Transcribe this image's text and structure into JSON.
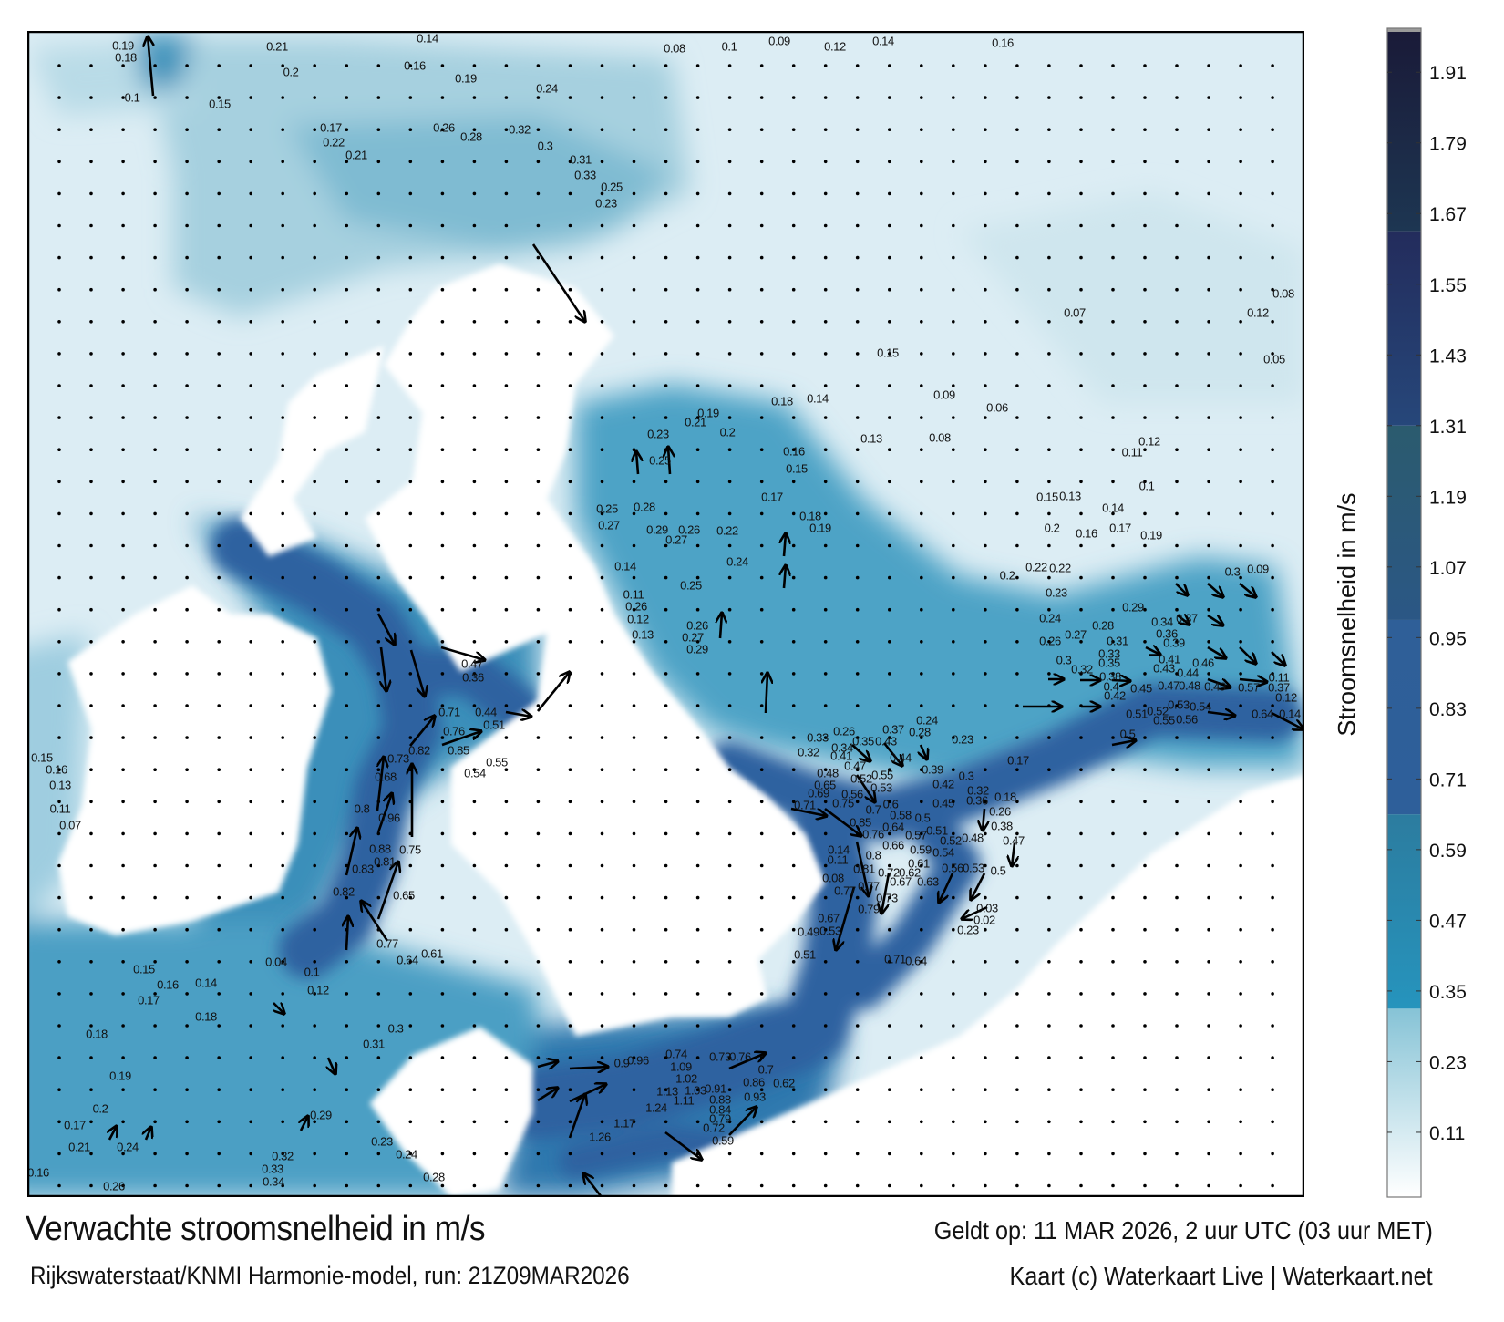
{
  "title": "Verwachte stroomsnelheid in m/s",
  "subtitle": "Rijkswaterstaat/KNMI Harmonie-model, run: 21Z09MAR2026",
  "valid_time": "Geldt op: 11 MAR 2026, 2 uur UTC (03 uur MET)",
  "credit": "Kaart (c) Waterkaart Live | Waterkaart.net",
  "colorbar": {
    "label": "Stroomsnelheid in m/s",
    "range": [
      0,
      1.98
    ],
    "ticks": [
      "1.91",
      "1.79",
      "1.67",
      "1.55",
      "1.43",
      "1.31",
      "1.19",
      "1.07",
      "0.95",
      "0.83",
      "0.71",
      "0.59",
      "0.47",
      "0.35",
      "0.23",
      "0.11"
    ],
    "colors": {
      "low": "#ffffff",
      "light": "#8cc6d8",
      "teal": "#2a8fb7",
      "blue": "#2d5f9a",
      "slate": "#2a5a74",
      "navy": "#24386a",
      "dark": "#1a1c38",
      "land": "#ffffff"
    }
  },
  "map": {
    "labels": [
      "0.19",
      "0.18",
      "0.1",
      "0.21",
      "0.2",
      "0.14",
      "0.16",
      "0.19",
      "0.24",
      "0.15",
      "0.17",
      "0.22",
      "0.21",
      "0.26",
      "0.28",
      "0.32",
      "0.3",
      "0.31",
      "0.33",
      "0.25",
      "0.23",
      "0.08",
      "0.1",
      "0.09",
      "0.12",
      "0.14",
      "0.16",
      "0.15",
      "0.18",
      "0.14",
      "0.21",
      "0.19",
      "0.2",
      "0.23",
      "0.25",
      "0.16",
      "0.15",
      "0.17",
      "0.18",
      "0.19",
      "0.22",
      "0.24",
      "0.28",
      "0.29",
      "0.26",
      "0.27",
      "0.25",
      "0.27",
      "0.14",
      "0.11",
      "0.26",
      "0.12",
      "0.13",
      "0.25",
      "0.26",
      "0.27",
      "0.29",
      "0.13",
      "0.08",
      "0.09",
      "0.06",
      "0.12",
      "0.11",
      "0.08",
      "0.12",
      "0.07",
      "0.05",
      "0.15",
      "0.13",
      "0.14",
      "0.16",
      "0.17",
      "0.19",
      "0.2",
      "0.1",
      "0.2",
      "0.22",
      "0.22",
      "0.23",
      "0.24",
      "0.26",
      "0.27",
      "0.3",
      "0.32",
      "0.28",
      "0.29",
      "0.31",
      "0.33",
      "0.35",
      "0.38",
      "0.4",
      "0.42",
      "0.45",
      "0.34",
      "0.37",
      "0.36",
      "0.39",
      "0.41",
      "0.43",
      "0.44",
      "0.46",
      "0.47",
      "0.48",
      "0.49",
      "0.57",
      "0.51",
      "0.52",
      "0.53",
      "0.54",
      "0.55",
      "0.56",
      "0.5",
      "0.3",
      "0.09",
      "0.11",
      "0.37",
      "0.12",
      "0.64",
      "0.14",
      "0.76",
      "0.85",
      "0.8",
      "0.81",
      "0.77",
      "0.79",
      "0.73",
      "0.72",
      "0.67",
      "0.63",
      "0.62",
      "0.61",
      "0.59",
      "0.57",
      "0.58",
      "0.64",
      "0.66",
      "0.5",
      "0.51",
      "0.52",
      "0.54",
      "0.56",
      "0.53",
      "0.48",
      "0.5",
      "0.47",
      "0.38",
      "0.26",
      "0.36",
      "0.32",
      "0.18",
      "0.3",
      "0.42",
      "0.45",
      "0.39",
      "0.44",
      "0.43",
      "0.37",
      "0.28",
      "0.24",
      "0.35",
      "0.26",
      "0.33",
      "0.32",
      "0.41",
      "0.34",
      "0.47",
      "0.48",
      "0.65",
      "0.69",
      "0.71",
      "0.75",
      "0.56",
      "0.52",
      "0.55",
      "0.53",
      "0.7",
      "0.6",
      "0.23",
      "0.17",
      "0.23",
      "0.03",
      "0.02",
      "0.14",
      "0.11",
      "0.08",
      "0.77",
      "0.67",
      "0.53",
      "0.49",
      "0.51",
      "0.71",
      "0.64",
      "0.71",
      "0.82",
      "0.76",
      "0.51",
      "0.44",
      "0.73",
      "0.68",
      "0.8",
      "0.96",
      "0.88",
      "0.75",
      "0.81",
      "0.83",
      "0.82",
      "0.65",
      "0.77",
      "0.61",
      "0.64",
      "0.47",
      "0.36",
      "0.85",
      "0.55",
      "0.54",
      "1.09",
      "1.02",
      "1.13",
      "1.24",
      "1.11",
      "1.03",
      "0.91",
      "0.88",
      "0.84",
      "0.79",
      "0.72",
      "0.59",
      "0.86",
      "0.93",
      "0.9",
      "0.96",
      "1.17",
      "1.26",
      "0.74",
      "0.73",
      "0.76",
      "0.7",
      "0.62",
      "0.15",
      "0.16",
      "0.13",
      "0.11",
      "0.07",
      "0.16",
      "0.26",
      "0.21",
      "0.24",
      "0.17",
      "0.2",
      "0.19",
      "0.18",
      "0.17",
      "0.16",
      "0.14",
      "0.18",
      "0.15",
      "0.04",
      "0.1",
      "0.12",
      "0.33",
      "0.34",
      "0.32",
      "0.24",
      "0.23",
      "0.28",
      "0.29",
      "0.31",
      "0.3"
    ]
  }
}
